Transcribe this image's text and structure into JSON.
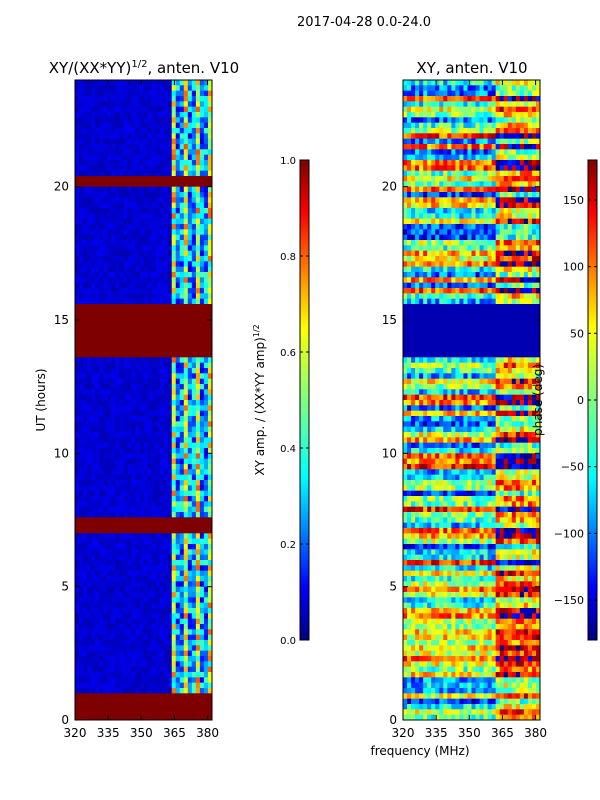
{
  "figure": {
    "suptitle": "2017-04-28 0.0-24.0",
    "shared_xlabel": "frequency (MHz)"
  },
  "colors": {
    "jet_stops": [
      "#00007f",
      "#0000ff",
      "#007fff",
      "#00ffff",
      "#7fff7f",
      "#ffff00",
      "#ff7f00",
      "#ff0000",
      "#7f0000"
    ]
  },
  "chart_data": [
    {
      "type": "heatmap",
      "title_main": "XY/(XX*YY)",
      "title_sup": "1/2",
      "title_tail": ", anten. V10",
      "xlabel": "",
      "ylabel": "UT (hours)",
      "x_range": [
        320,
        382
      ],
      "y_range": [
        0,
        24
      ],
      "xticks": [
        320,
        335,
        350,
        365,
        380
      ],
      "yticks": [
        0,
        5,
        10,
        15,
        20
      ],
      "quantity": "normalized XY amplitude",
      "colorbar": {
        "label": "XY amp. / (XX*YY amp)",
        "label_sup": "1/2",
        "range": [
          0.0,
          1.0
        ],
        "ticks": [
          "0.0",
          "0.2",
          "0.4",
          "0.6",
          "0.8",
          "1.0"
        ]
      },
      "saturated_time_bands_hours": [
        [
          0.0,
          1.0
        ],
        [
          6.9,
          7.6
        ],
        [
          13.6,
          15.5
        ],
        [
          20.0,
          20.3
        ]
      ],
      "bright_freq_region_mhz": [
        363,
        382
      ],
      "background_level": 0.05
    },
    {
      "type": "heatmap",
      "title_main": "XY, anten. V10",
      "xlabel": "frequency (MHz)",
      "ylabel": "",
      "x_range": [
        320,
        382
      ],
      "y_range": [
        0,
        24
      ],
      "xticks": [
        320,
        335,
        350,
        365,
        380
      ],
      "yticks": [
        0,
        5,
        10,
        15,
        20
      ],
      "quantity": "XY phase",
      "colorbar": {
        "label": "phase (deg)",
        "range": [
          -180,
          180
        ],
        "ticks": [
          "-150",
          "-100",
          "-50",
          "0",
          "50",
          "100",
          "150"
        ]
      },
      "blanked_time_bands_hours": [
        [
          13.6,
          15.5
        ]
      ]
    }
  ]
}
